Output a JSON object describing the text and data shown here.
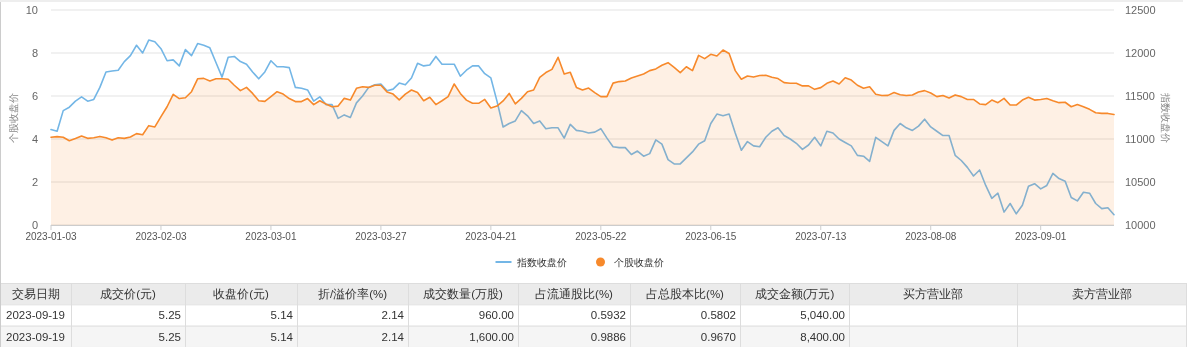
{
  "chart_data": [
    {
      "type": "line",
      "ylabel": "个股收盘价",
      "y2label": "指数收盘价",
      "grid": "y",
      "legend": "bottom",
      "categories": [
        "2023-01-03",
        null,
        null,
        null,
        null,
        null,
        null,
        null,
        null,
        null,
        null,
        null,
        null,
        null,
        null,
        null,
        null,
        null,
        "2023-02-03",
        null,
        null,
        null,
        null,
        null,
        null,
        null,
        null,
        null,
        null,
        null,
        null,
        null,
        null,
        null,
        null,
        null,
        "2023-03-01",
        null,
        null,
        null,
        null,
        null,
        null,
        null,
        null,
        null,
        null,
        null,
        null,
        null,
        null,
        null,
        null,
        null,
        "2023-03-27",
        null,
        null,
        null,
        null,
        null,
        null,
        null,
        null,
        null,
        null,
        null,
        null,
        null,
        null,
        null,
        null,
        null,
        "2023-04-21",
        null,
        null,
        null,
        null,
        null,
        null,
        null,
        null,
        null,
        null,
        null,
        null,
        null,
        null,
        null,
        null,
        null,
        "2023-05-22",
        null,
        null,
        null,
        null,
        null,
        null,
        null,
        null,
        null,
        null,
        null,
        null,
        null,
        null,
        null,
        null,
        null,
        "2023-06-15",
        null,
        null,
        null,
        null,
        null,
        null,
        null,
        null,
        null,
        null,
        null,
        null,
        null,
        null,
        null,
        null,
        null,
        "2023-07-13",
        null,
        null,
        null,
        null,
        null,
        null,
        null,
        null,
        null,
        null,
        null,
        null,
        null,
        null,
        null,
        null,
        null,
        "2023-08-08",
        null,
        null,
        null,
        null,
        null,
        null,
        null,
        null,
        null,
        null,
        null,
        null,
        null,
        null,
        null,
        null,
        null,
        "2023-09-01",
        null,
        null,
        null,
        null,
        null,
        null,
        null,
        null,
        null,
        null,
        null,
        null
      ],
      "ylim": [
        0,
        10
      ],
      "yticks": [
        0,
        2,
        4,
        6,
        8,
        10
      ],
      "y2lim": [
        10000,
        12500
      ],
      "y2ticks": [
        10000,
        10500,
        11000,
        11500,
        12000,
        12500
      ],
      "series": [
        {
          "name": "指数收盘价",
          "type": "line",
          "axis": "y2",
          "color": "#73b6e6",
          "values": [
            11110,
            11090,
            11330,
            11370,
            11440,
            11490,
            11440,
            11460,
            11600,
            11780,
            11790,
            11800,
            11900,
            11970,
            12090,
            12000,
            12150,
            12130,
            12050,
            11910,
            11920,
            11850,
            12040,
            11970,
            12110,
            12090,
            12060,
            11890,
            11720,
            11950,
            11960,
            11900,
            11870,
            11780,
            11700,
            11780,
            11910,
            11840,
            11840,
            11830,
            11600,
            11590,
            11570,
            11440,
            11490,
            11400,
            11400,
            11240,
            11280,
            11250,
            11420,
            11500,
            11600,
            11630,
            11640,
            11560,
            11580,
            11650,
            11630,
            11710,
            11880,
            11850,
            11860,
            11960,
            11870,
            11870,
            11870,
            11730,
            11800,
            11850,
            11850,
            11760,
            11710,
            11440,
            11140,
            11180,
            11210,
            11330,
            11270,
            11180,
            11210,
            11120,
            11130,
            11130,
            11010,
            11170,
            11100,
            11090,
            11070,
            11080,
            11120,
            11010,
            10910,
            10900,
            10900,
            10820,
            10860,
            10800,
            10830,
            10990,
            10940,
            10760,
            10710,
            10710,
            10780,
            10850,
            10940,
            10980,
            11180,
            11290,
            11270,
            11290,
            11070,
            10870,
            10970,
            10920,
            10910,
            11020,
            11090,
            11130,
            11040,
            11000,
            10950,
            10880,
            10930,
            11020,
            10920,
            11090,
            11070,
            11000,
            10960,
            10920,
            10810,
            10800,
            10740,
            11020,
            10970,
            10920,
            11100,
            11180,
            11130,
            11100,
            11150,
            11230,
            11140,
            11090,
            11040,
            11040,
            10810,
            10750,
            10670,
            10570,
            10640,
            10460,
            10310,
            10370,
            10150,
            10250,
            10130,
            10230,
            10450,
            10480,
            10420,
            10460,
            10600,
            10540,
            10510,
            10320,
            10280,
            10380,
            10370,
            10250,
            10190,
            10200,
            10120
          ]
        },
        {
          "name": "个股收盘价",
          "type": "area",
          "color": "#f7892b",
          "values": [
            4.08,
            4.11,
            4.08,
            3.92,
            4.02,
            4.14,
            4.03,
            4.06,
            4.12,
            4.06,
            3.95,
            4.06,
            4.03,
            4.09,
            4.25,
            4.2,
            4.62,
            4.56,
            5.04,
            5.5,
            6.08,
            5.88,
            5.92,
            6.2,
            6.8,
            6.82,
            6.7,
            6.8,
            6.8,
            6.78,
            6.5,
            6.25,
            6.4,
            6.12,
            5.78,
            5.75,
            5.97,
            6.2,
            6.09,
            5.88,
            5.74,
            5.74,
            5.88,
            5.6,
            5.78,
            5.63,
            5.5,
            5.53,
            5.89,
            5.81,
            6.36,
            6.43,
            6.4,
            6.5,
            6.5,
            6.19,
            6.09,
            5.82,
            6.09,
            6.28,
            6.16,
            5.78,
            5.94,
            5.6,
            5.78,
            5.97,
            6.56,
            6.12,
            5.81,
            5.66,
            5.66,
            5.84,
            5.44,
            5.53,
            5.77,
            6.12,
            5.63,
            5.89,
            6.2,
            6.28,
            6.87,
            7.09,
            7.24,
            7.8,
            7.02,
            7.1,
            6.4,
            6.28,
            6.37,
            6.16,
            5.97,
            5.97,
            6.6,
            6.67,
            6.7,
            6.84,
            6.93,
            7.02,
            7.18,
            7.26,
            7.43,
            7.55,
            7.33,
            7.09,
            7.36,
            7.18,
            7.89,
            7.74,
            7.94,
            7.86,
            8.14,
            7.98,
            7.18,
            6.78,
            6.93,
            6.88,
            6.95,
            6.96,
            6.87,
            6.81,
            6.62,
            6.59,
            6.59,
            6.47,
            6.47,
            6.31,
            6.39,
            6.59,
            6.7,
            6.56,
            6.85,
            6.74,
            6.5,
            6.36,
            6.43,
            6.08,
            6.02,
            6.03,
            6.16,
            6.06,
            6.02,
            6.05,
            6.19,
            6.25,
            6.14,
            5.97,
            6.02,
            5.91,
            6.05,
            5.97,
            5.84,
            5.84,
            5.63,
            5.6,
            5.81,
            5.69,
            5.89,
            5.58,
            5.58,
            5.81,
            5.94,
            5.81,
            5.84,
            5.88,
            5.78,
            5.69,
            5.71,
            5.5,
            5.6,
            5.5,
            5.38,
            5.22,
            5.19,
            5.19,
            5.14
          ]
        }
      ]
    },
    {
      "type": "other",
      "categories": [
        "交易日期",
        "成交价(元)",
        "收盘价(元)",
        "折/溢价率(%)",
        "成交数量(万股)",
        "占流通股比(%)",
        "占总股本比(%)",
        "成交金额(万元)",
        "买方营业部",
        "卖方营业部"
      ],
      "cell_labels": [
        [
          "2023-09-19",
          "5.25",
          "5.14",
          "2.14",
          "960.00",
          "0.5932",
          "0.5802",
          "5,040.00",
          null,
          null
        ],
        [
          "2023-09-19",
          "5.25",
          "5.14",
          "2.14",
          "1,600.00",
          "0.9886",
          "0.9670",
          "8,400.00",
          null,
          null
        ]
      ]
    }
  ]
}
